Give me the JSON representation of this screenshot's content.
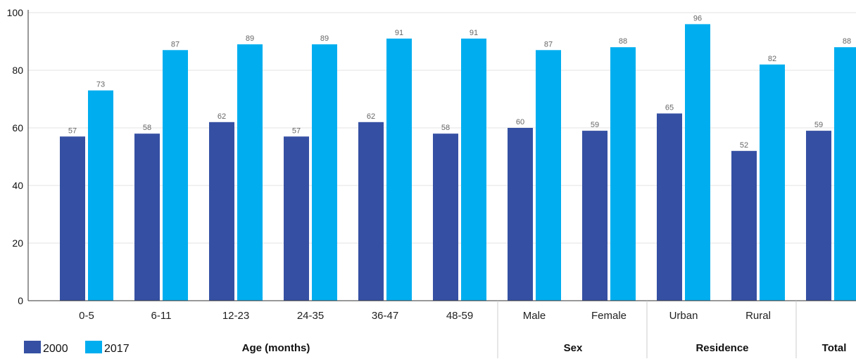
{
  "chart_data": {
    "type": "bar",
    "categories": [
      "0-5",
      "6-11",
      "12-23",
      "24-35",
      "36-47",
      "48-59",
      "Male",
      "Female",
      "Urban",
      "Rural",
      ""
    ],
    "groups": [
      {
        "label": "Age (months)",
        "count": 6
      },
      {
        "label": "Sex",
        "count": 2
      },
      {
        "label": "Residence",
        "count": 2
      },
      {
        "label": "Total",
        "count": 1
      }
    ],
    "series": [
      {
        "name": "2000",
        "color": "#3550a3",
        "values": [
          57,
          58,
          62,
          57,
          62,
          58,
          60,
          59,
          65,
          52,
          59
        ]
      },
      {
        "name": "2017",
        "color": "#00aeef",
        "values": [
          73,
          87,
          89,
          89,
          91,
          91,
          87,
          88,
          96,
          82,
          88
        ]
      }
    ],
    "ylim": [
      0,
      100
    ],
    "yticks": [
      0,
      20,
      40,
      60,
      80,
      100
    ],
    "grid": true,
    "legend_position": "bottom-left",
    "title": "",
    "xlabel": "",
    "ylabel": ""
  }
}
